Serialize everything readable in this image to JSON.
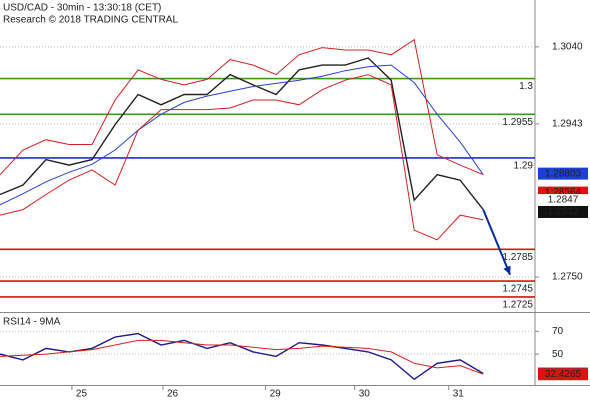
{
  "chart_data": [
    {
      "type": "line",
      "title": "USD/CAD - 30min - 13:30:18 (CET)",
      "subtitle": "Research © 2018 TRADING CENTRAL",
      "x": [
        0,
        12,
        24,
        36,
        48,
        60,
        72,
        84,
        96,
        108,
        120,
        132,
        144,
        156,
        168,
        180,
        192,
        204,
        216,
        228,
        240,
        252
      ],
      "xlim": [
        0,
        279
      ],
      "xticks": [
        {
          "value": 37.5,
          "label": "25"
        },
        {
          "value": 85,
          "label": "26"
        },
        {
          "value": 138.5,
          "label": "29"
        },
        {
          "value": 185,
          "label": "30"
        },
        {
          "value": 234,
          "label": "31"
        }
      ],
      "ylim": [
        1.2706,
        1.3099
      ],
      "yticks": [
        {
          "value": 1.304,
          "label": "1.3040"
        },
        1.2943,
        {
          "value": 1.275,
          "label": "1.2750"
        }
      ],
      "grid": true,
      "series": [
        {
          "color": "#222222",
          "values": [
            1.2854,
            1.2866,
            1.2898,
            1.2891,
            1.2898,
            1.2942,
            1.298,
            1.2967,
            1.298,
            1.298,
            1.3005,
            1.2992,
            1.298,
            1.3011,
            1.3017,
            1.3017,
            1.3026,
            1.2998,
            1.2847,
            1.2879,
            1.2872,
            1.2835
          ]
        },
        {
          "color": "#2a3fd0",
          "values": [
            1.2841,
            1.2855,
            1.287,
            1.2882,
            1.2892,
            1.291,
            1.2935,
            1.2955,
            1.297,
            1.2978,
            1.2984,
            1.299,
            1.2994,
            1.2998,
            1.3003,
            1.301,
            1.3015,
            1.3017,
            1.2995,
            1.2955,
            1.292,
            1.2879
          ]
        },
        {
          "color": "#d42020",
          "values": [
            1.2879,
            1.291,
            1.2923,
            1.2917,
            1.2917,
            1.2973,
            1.3011,
            1.2999,
            1.2992,
            1.2999,
            1.3024,
            1.3017,
            1.3005,
            1.303,
            1.3039,
            1.3036,
            1.3036,
            1.303,
            1.3049,
            1.2904,
            1.2891,
            1.2879
          ]
        },
        {
          "color": "#d42020",
          "values": [
            1.2828,
            1.2835,
            1.2854,
            1.2872,
            1.2885,
            1.2866,
            1.2935,
            1.2961,
            1.2961,
            1.2961,
            1.2963,
            1.2973,
            1.2973,
            1.2967,
            1.2986,
            1.2998,
            1.3005,
            1.2992,
            1.2809,
            1.2797,
            1.2828,
            1.2822
          ]
        }
      ],
      "levels": [
        {
          "value": 1.3,
          "color": "#3a9a1a"
        },
        {
          "value": 1.2955,
          "color": "#3a9a1a"
        },
        {
          "value": 1.29,
          "color": "#1c2fd6"
        },
        {
          "value": 1.2785,
          "color": "#e01010"
        },
        {
          "value": 1.2745,
          "color": "#e01010"
        },
        {
          "value": 1.2725,
          "color": "#e01010"
        }
      ],
      "price_tags": [
        {
          "value": 1.28803,
          "color": "#1c3fd6"
        },
        {
          "value": 1.28564,
          "color": "#e01010"
        },
        {
          "value": 1.2847,
          "color": "#ffffff"
        },
        {
          "value": 1.2832,
          "color": "#111111"
        }
      ],
      "forecast_arrow": {
        "color": "#0a2a9a",
        "x": [
          252,
          266
        ],
        "values": [
          1.2835,
          1.2753
        ]
      }
    },
    {
      "type": "line",
      "title": "RSI14 - 9MA",
      "x": [
        0,
        12,
        24,
        36,
        48,
        60,
        72,
        84,
        96,
        108,
        120,
        132,
        144,
        156,
        168,
        180,
        192,
        204,
        216,
        228,
        240,
        252
      ],
      "xlim": [
        0,
        279
      ],
      "ylim": [
        23,
        86
      ],
      "yticks": [
        50,
        70
      ],
      "grid": true,
      "series": [
        {
          "color": "#1a1a8a",
          "values": [
            50,
            45,
            55,
            52,
            55,
            65,
            68,
            58,
            62,
            55,
            60,
            52,
            48,
            60,
            58,
            55,
            52,
            45,
            28,
            42,
            45,
            33.0218
          ]
        },
        {
          "color": "#d42020",
          "values": [
            48,
            49,
            50,
            52,
            54,
            58,
            62,
            62,
            60,
            58,
            58,
            56,
            54,
            55,
            57,
            56,
            55,
            52,
            42,
            38,
            40,
            32.4265
          ]
        }
      ],
      "price_tags": [
        {
          "value": 33.0218,
          "color": "#1c3fd6"
        },
        {
          "value": 32.4265,
          "color": "#e01010"
        }
      ]
    }
  ]
}
